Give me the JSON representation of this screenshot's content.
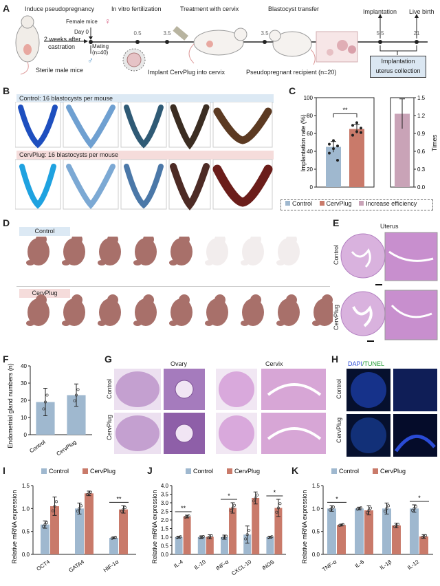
{
  "panels": {
    "A": "A",
    "B": "B",
    "C": "C",
    "D": "D",
    "E": "E",
    "F": "F",
    "G": "G",
    "H": "H",
    "I": "I",
    "J": "J",
    "K": "K"
  },
  "schematic": {
    "induce": "Induce pseudopregnancy",
    "weeks": "2 weeks after",
    "castration": "castration",
    "sterile": "Sterile male mice",
    "female": "Female mice",
    "day0": "Day 0",
    "ivf": "In vitro fertilization",
    "mating": "Mating",
    "mating_n": "(n=40)",
    "treatment": "Treatment with cervix",
    "implant": "Implant CervPlug into cervix",
    "transfer": "Blastocyst transfer",
    "recipient": "Pseudopregnant recipient (n=20)",
    "implantation": "Implantation",
    "livebirth": "Live birth",
    "collection1": "Implantation",
    "collection2": "uterus collection",
    "ticks": [
      "0.5",
      "3.5",
      "3.5",
      "5.5",
      "21"
    ]
  },
  "panelB": {
    "control_label": "Control: 16 blastocysts per mouse",
    "cervplug_label": "CervPlug: 16 blastocysts per mouse"
  },
  "panelC": {
    "ylabel": "Implantation rate (%)",
    "y2label": "Times",
    "sig": "**",
    "legend": [
      "Control",
      "CervPlug",
      "Increase efficiency"
    ]
  },
  "panelD": {
    "control": "Control",
    "cervplug": "CervPlug"
  },
  "panelE": {
    "title": "Uterus",
    "control": "Control",
    "cervplug": "CervPlug"
  },
  "panelF": {
    "ylabel": "Endometrial gland numbers (n)"
  },
  "panelG": {
    "ovary": "Ovary",
    "cervix": "Cervix",
    "control": "Control",
    "cervplug": "CervPlug"
  },
  "panelH": {
    "dapi": "DAPI",
    "tunel": "/TUNEL",
    "control": "Control",
    "cervplug": "CervPlug"
  },
  "bar_legend": {
    "control": "Control",
    "cervplug": "CervPlug"
  },
  "panelI": {
    "ylabel": "Relative mRNA expression"
  },
  "panelJ": {
    "ylabel": "Relative mRNA expression"
  },
  "panelK": {
    "ylabel": "Relative mRNA expression"
  },
  "colors": {
    "control": "#9fb8cf",
    "cervplug": "#c97a6a",
    "increase": "#c9a3b7"
  },
  "chart_data": [
    {
      "id": "C",
      "type": "bar",
      "categories": [
        "Control",
        "CervPlug"
      ],
      "series": [
        {
          "name": "Implantation rate (%)",
          "values": [
            45,
            65
          ],
          "errors": [
            6,
            5
          ]
        }
      ],
      "secondary": {
        "name": "Increase efficiency",
        "value": 1.23,
        "error": 0.25,
        "ylim": [
          0,
          1.5
        ],
        "ticks": [
          0,
          0.3,
          0.6,
          0.9,
          1.2,
          1.5
        ]
      },
      "ylim": [
        0,
        100
      ],
      "yticks": [
        0,
        20,
        40,
        60,
        80,
        100
      ],
      "significance": "**",
      "points": [
        [
          38,
          43,
          46,
          48,
          52,
          30
        ],
        [
          58,
          62,
          66,
          69,
          72,
          61
        ]
      ]
    },
    {
      "id": "F",
      "type": "bar",
      "categories": [
        "Control",
        "CervPlug"
      ],
      "series": [
        {
          "name": "Endometrial gland numbers (n)",
          "values": [
            19,
            23
          ],
          "errors": [
            8,
            6.5
          ]
        }
      ],
      "ylim": [
        0,
        40
      ],
      "yticks": [
        0,
        10,
        20,
        30,
        40
      ]
    },
    {
      "id": "I",
      "type": "bar",
      "categories": [
        "OCT4",
        "GATA4",
        "HIF-1α"
      ],
      "series": [
        {
          "name": "Control",
          "values": [
            0.65,
            1.0,
            0.36
          ],
          "errors": [
            0.08,
            0.12,
            0.02
          ]
        },
        {
          "name": "CervPlug",
          "values": [
            1.05,
            1.33,
            0.98
          ],
          "errors": [
            0.2,
            0.05,
            0.08
          ]
        }
      ],
      "ylim": [
        0,
        1.5
      ],
      "yticks": [
        0,
        0.5,
        1.0,
        1.5
      ],
      "significance": [
        "",
        "",
        "**"
      ]
    },
    {
      "id": "J",
      "type": "bar",
      "categories": [
        "IL-4",
        "IL-10",
        "INF-α",
        "CXCL-10",
        "iNOS"
      ],
      "series": [
        {
          "name": "Control",
          "values": [
            1.0,
            1.0,
            1.0,
            1.15,
            1.0
          ],
          "errors": [
            0.06,
            0.08,
            0.12,
            0.5,
            0.06
          ]
        },
        {
          "name": "CervPlug",
          "values": [
            2.2,
            1.02,
            2.7,
            3.28,
            2.7
          ],
          "errors": [
            0.08,
            0.12,
            0.3,
            0.35,
            0.5
          ]
        }
      ],
      "ylim": [
        0,
        4
      ],
      "yticks": [
        0,
        0.5,
        1.0,
        1.5,
        2.0,
        2.5,
        3.0,
        3.5,
        4.0
      ],
      "significance": [
        "**",
        "",
        "*",
        "",
        "*"
      ]
    },
    {
      "id": "K",
      "type": "bar",
      "categories": [
        "TNF-α",
        "IL-6",
        "IL-1β",
        "IL-12"
      ],
      "series": [
        {
          "name": "Control",
          "values": [
            1.0,
            1.0,
            1.0,
            1.0
          ],
          "errors": [
            0.06,
            0.03,
            0.12,
            0.08
          ]
        },
        {
          "name": "CervPlug",
          "values": [
            0.64,
            0.96,
            0.63,
            0.39
          ],
          "errors": [
            0.02,
            0.1,
            0.05,
            0.04
          ]
        }
      ],
      "ylim": [
        0,
        1.5
      ],
      "yticks": [
        0,
        0.5,
        1.0,
        1.5
      ],
      "significance": [
        "*",
        "",
        "",
        "*"
      ]
    }
  ]
}
